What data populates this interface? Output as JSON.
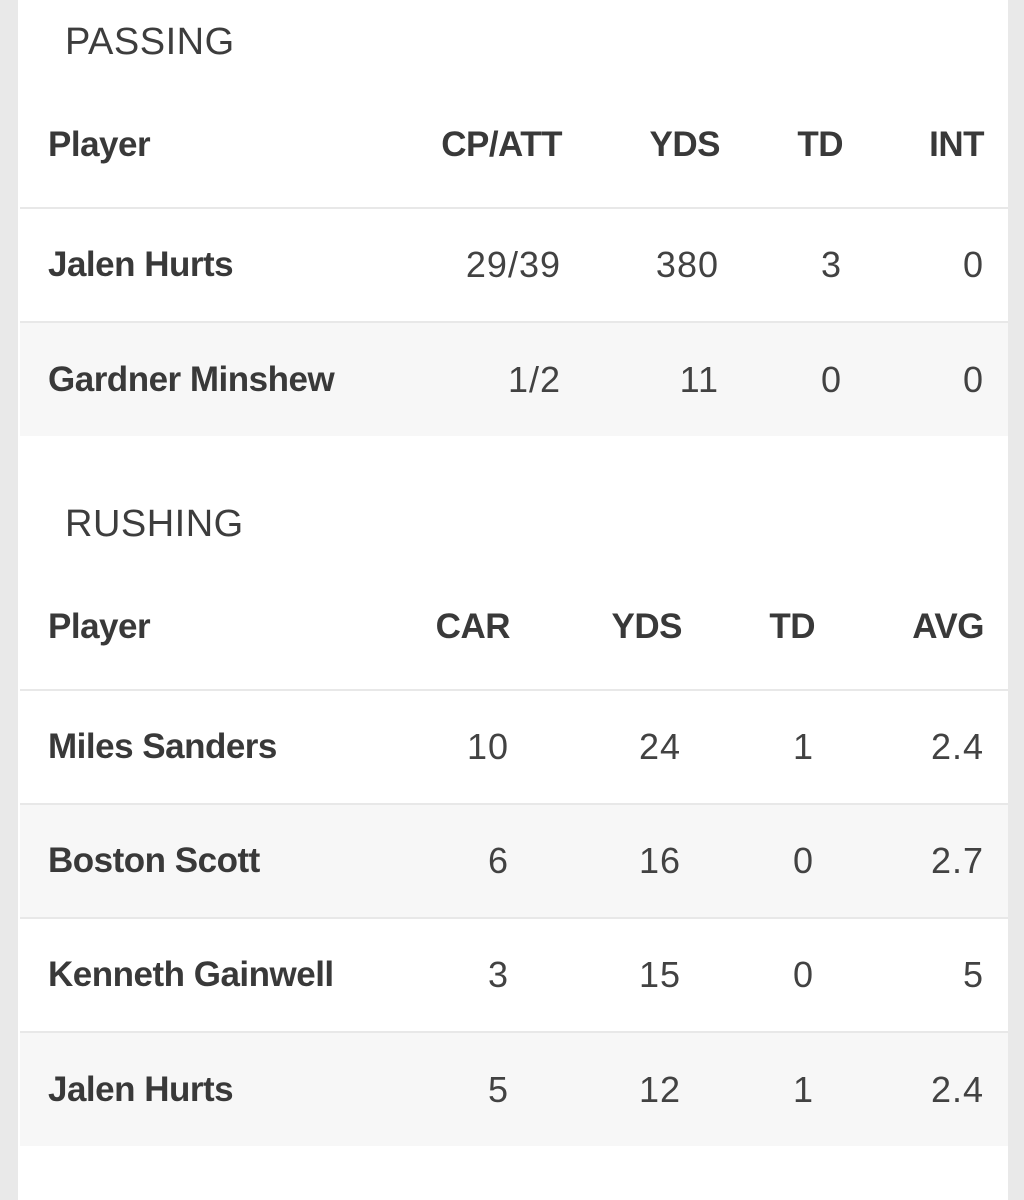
{
  "theme": {
    "gutter_color": "#e9e9e9",
    "card_background": "#ffffff",
    "stripe_color": "#f7f7f7",
    "divider_color": "#e8e8e8",
    "title_color": "#3d3d3d",
    "bold_text_color": "#393939",
    "value_text_color": "#424242"
  },
  "sections": [
    {
      "title": "PASSING",
      "columns": [
        "Player",
        "CP/ATT",
        "YDS",
        "TD",
        "INT"
      ],
      "rows": [
        {
          "player": "Jalen Hurts",
          "values": [
            "29/39",
            "380",
            "3",
            "0"
          ]
        },
        {
          "player": "Gardner Minshew",
          "values": [
            "1/2",
            "11",
            "0",
            "0"
          ]
        }
      ]
    },
    {
      "title": "RUSHING",
      "columns": [
        "Player",
        "CAR",
        "YDS",
        "TD",
        "AVG"
      ],
      "rows": [
        {
          "player": "Miles Sanders",
          "values": [
            "10",
            "24",
            "1",
            "2.4"
          ]
        },
        {
          "player": "Boston Scott",
          "values": [
            "6",
            "16",
            "0",
            "2.7"
          ]
        },
        {
          "player": "Kenneth Gainwell",
          "values": [
            "3",
            "15",
            "0",
            "5"
          ]
        },
        {
          "player": "Jalen Hurts",
          "values": [
            "5",
            "12",
            "1",
            "2.4"
          ]
        }
      ]
    }
  ]
}
